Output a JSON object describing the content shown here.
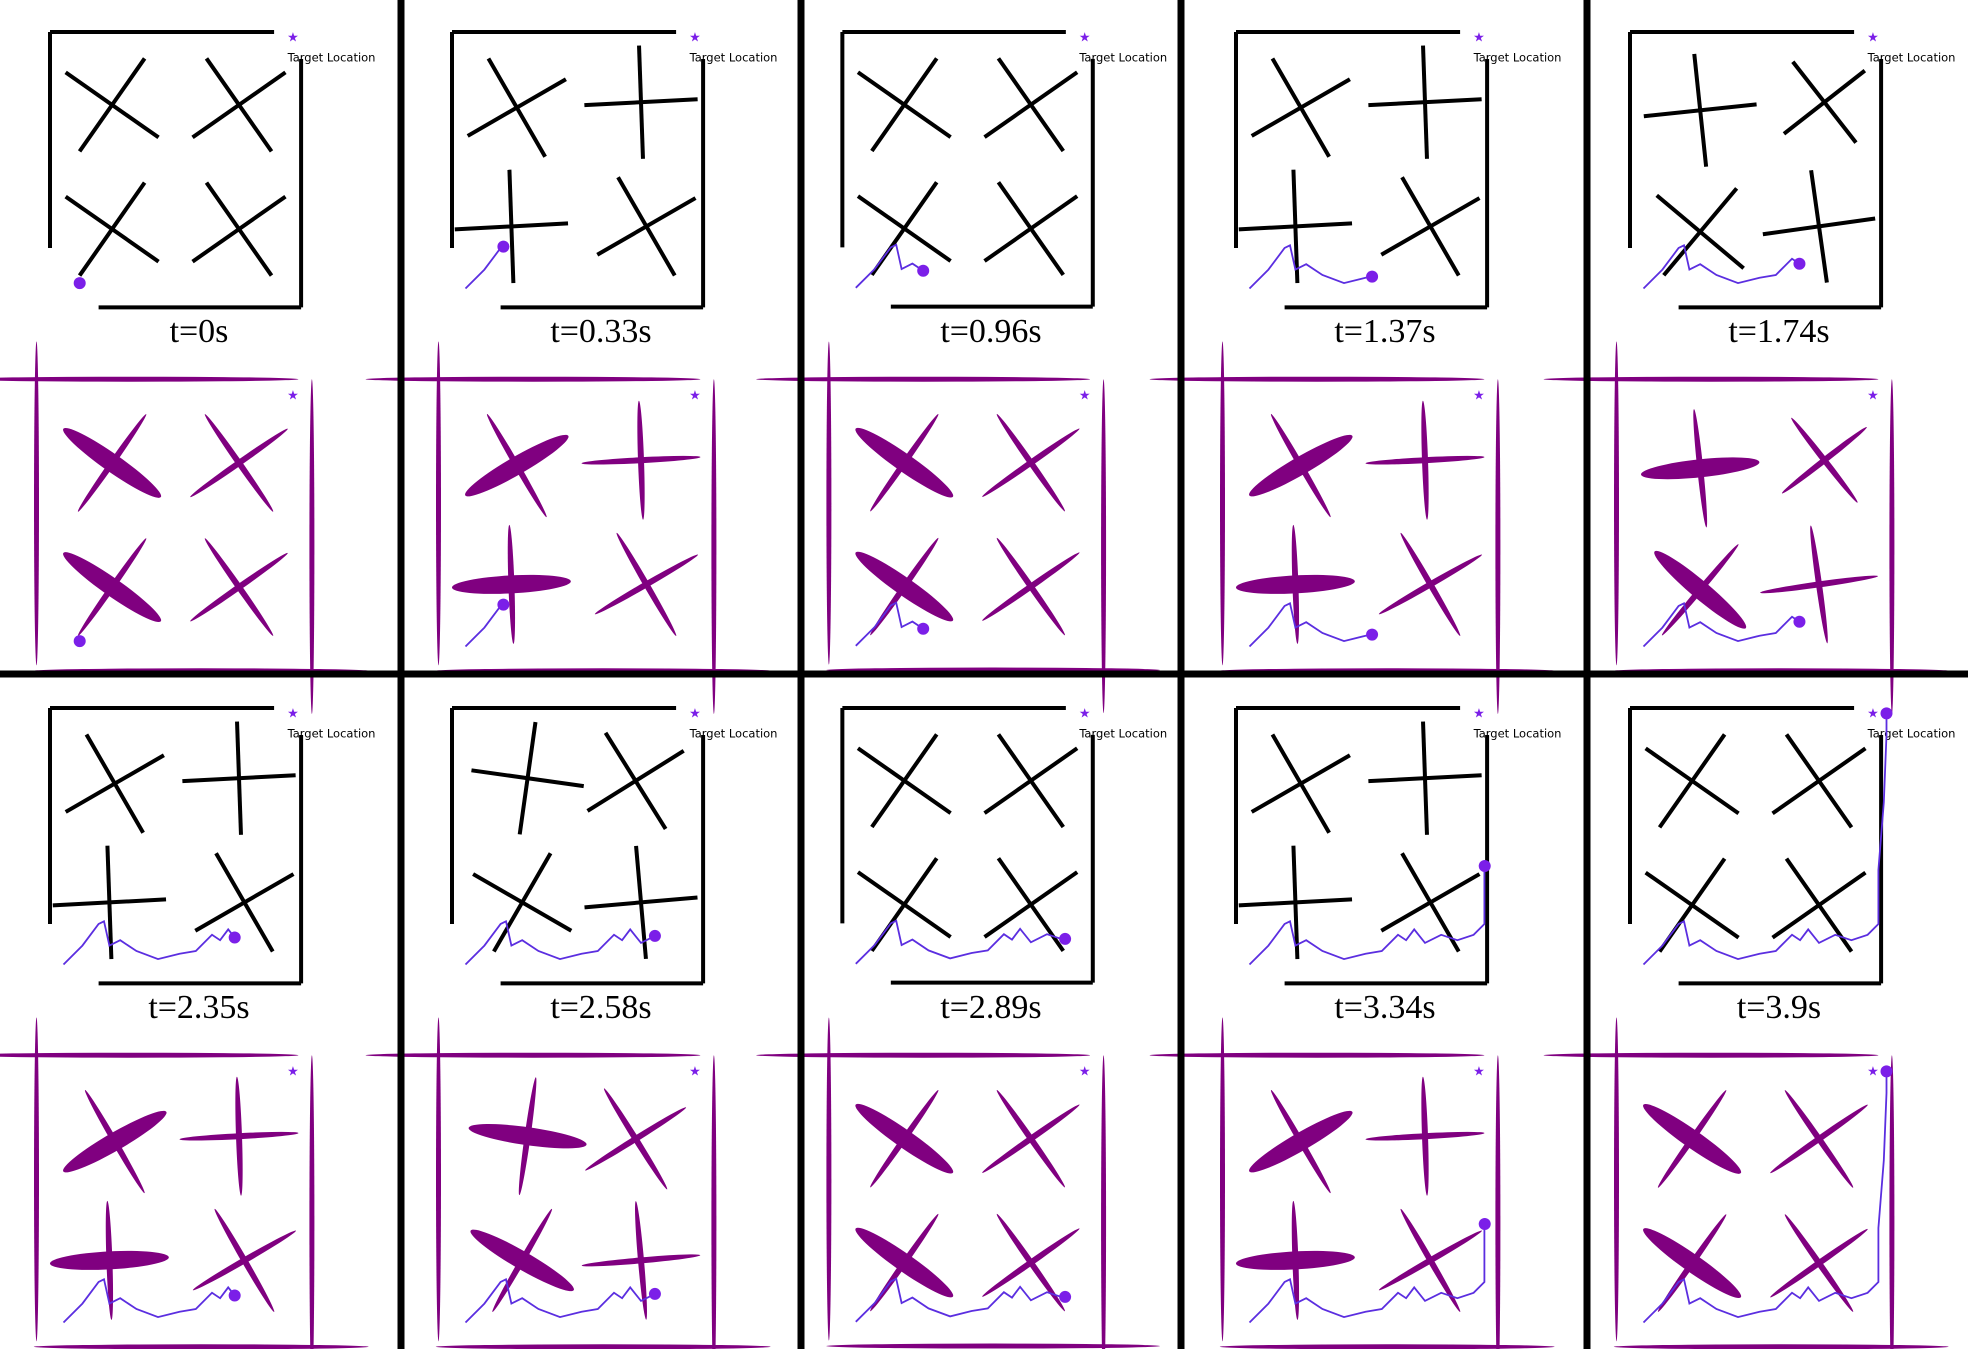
{
  "target_label": "Target Location",
  "colors": {
    "obstacle_top": "#000000",
    "obstacle_bottom": "#800080",
    "robot": "#7b1fe8",
    "trajectory": "#5b2ee0",
    "divider": "#000000"
  },
  "panels": [
    {
      "label": "t=0s",
      "config": "A",
      "progress": 0.0
    },
    {
      "label": "t=0.33s",
      "config": "B",
      "progress": 0.12
    },
    {
      "label": "t=0.96s",
      "config": "A",
      "progress": 0.27
    },
    {
      "label": "t=1.37s",
      "config": "B",
      "progress": 0.4
    },
    {
      "label": "t=1.74s",
      "config": "C",
      "progress": 0.52
    },
    {
      "label": "t=2.35s",
      "config": "B",
      "progress": 0.6
    },
    {
      "label": "t=2.58s",
      "config": "D",
      "progress": 0.66
    },
    {
      "label": "t=2.89s",
      "config": "A",
      "progress": 0.72
    },
    {
      "label": "t=3.34s",
      "config": "B",
      "progress": 0.86
    },
    {
      "label": "t=3.9s",
      "config": "A",
      "progress": 1.0
    }
  ]
}
